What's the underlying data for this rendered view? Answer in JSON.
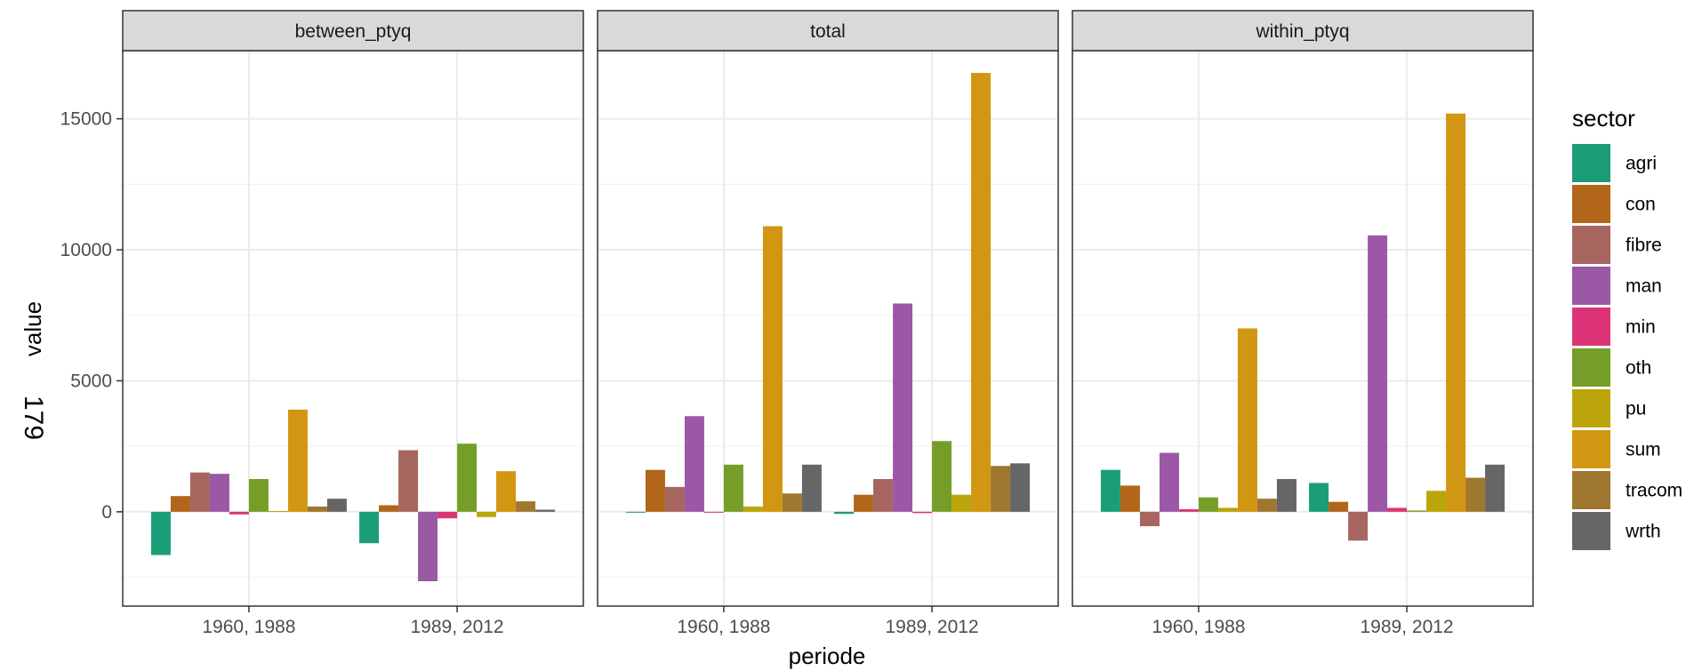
{
  "page_number": "179",
  "chart_data": {
    "type": "bar",
    "facets": [
      "between_ptyq",
      "total",
      "within_ptyq"
    ],
    "categories": [
      "1960, 1988",
      "1989, 2012"
    ],
    "xlabel": "periode",
    "ylabel": "value",
    "ylim": [
      -3600,
      17600
    ],
    "yticks": [
      0,
      5000,
      10000,
      15000
    ],
    "y_tick_labels": [
      "0",
      "5000",
      "10000",
      "15000"
    ],
    "grid": true,
    "legend_title": "sector",
    "legend_position": "right",
    "series": [
      {
        "name": "agri",
        "color": "#1b9e77",
        "values": {
          "between_ptyq": [
            -1650,
            -1200
          ],
          "total": [
            -30,
            -80
          ],
          "within_ptyq": [
            1600,
            1100
          ]
        }
      },
      {
        "name": "con",
        "color": "#b1661a",
        "values": {
          "between_ptyq": [
            600,
            250
          ],
          "total": [
            1600,
            650
          ],
          "within_ptyq": [
            1000,
            380
          ]
        }
      },
      {
        "name": "fibre",
        "color": "#a6665f",
        "values": {
          "between_ptyq": [
            1500,
            2350
          ],
          "total": [
            950,
            1250
          ],
          "within_ptyq": [
            -550,
            -1100
          ]
        }
      },
      {
        "name": "man",
        "color": "#9b58a5",
        "values": {
          "between_ptyq": [
            1450,
            -2650
          ],
          "total": [
            3650,
            7950
          ],
          "within_ptyq": [
            2250,
            10550
          ]
        }
      },
      {
        "name": "min",
        "color": "#dc3477",
        "values": {
          "between_ptyq": [
            -100,
            -250
          ],
          "total": [
            -30,
            -50
          ],
          "within_ptyq": [
            100,
            150
          ]
        }
      },
      {
        "name": "oth",
        "color": "#759e28",
        "values": {
          "between_ptyq": [
            1250,
            2600
          ],
          "total": [
            1800,
            2700
          ],
          "within_ptyq": [
            550,
            50
          ]
        }
      },
      {
        "name": "pu",
        "color": "#bca50a",
        "values": {
          "between_ptyq": [
            30,
            -200
          ],
          "total": [
            200,
            650
          ],
          "within_ptyq": [
            150,
            800
          ]
        }
      },
      {
        "name": "sum",
        "color": "#d19612",
        "values": {
          "between_ptyq": [
            3900,
            1550
          ],
          "total": [
            10900,
            16750
          ],
          "within_ptyq": [
            7000,
            15200
          ]
        }
      },
      {
        "name": "tracom",
        "color": "#a0772e",
        "values": {
          "between_ptyq": [
            200,
            400
          ],
          "total": [
            700,
            1750
          ],
          "within_ptyq": [
            500,
            1300
          ]
        }
      },
      {
        "name": "wrth",
        "color": "#666666",
        "values": {
          "between_ptyq": [
            500,
            80
          ],
          "total": [
            1800,
            1850
          ],
          "within_ptyq": [
            1250,
            1800
          ]
        }
      }
    ]
  }
}
